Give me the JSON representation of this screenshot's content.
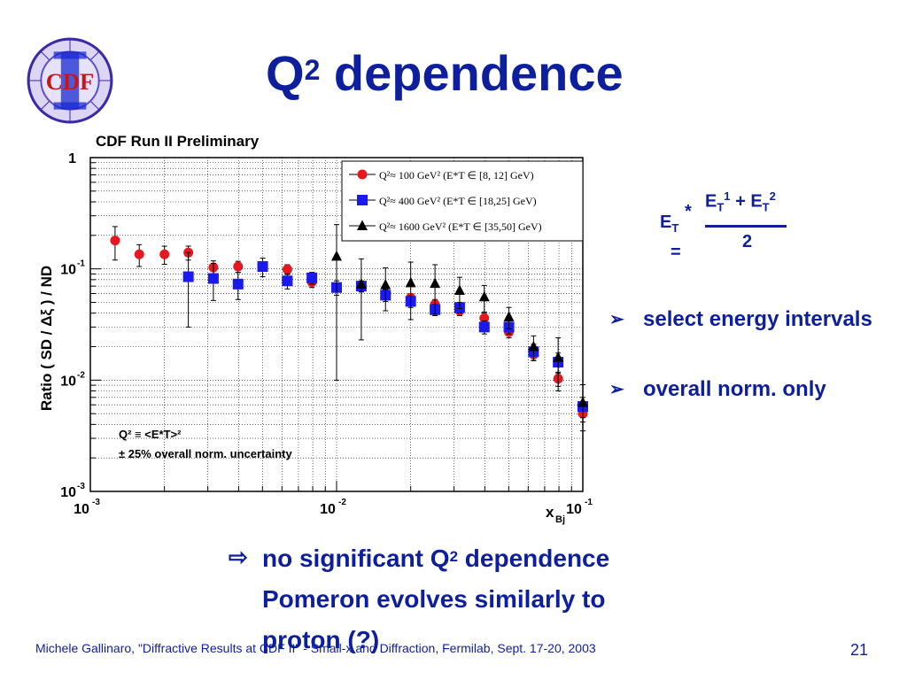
{
  "slide": {
    "title_base": "Q",
    "title_sup": "2",
    "title_rest": " dependence",
    "logo_text": "CDF",
    "formula": {
      "lhs": "E",
      "lhs_sub": "T",
      "star": "*",
      "eq": "=",
      "num_a": "E",
      "num_a_sub": "T",
      "num_a_sup": "1",
      "plus": " + ",
      "num_b": "E",
      "num_b_sub": "T",
      "num_b_sup": "2",
      "den": "2"
    },
    "bullets": [
      "select energy intervals",
      "overall norm. only"
    ],
    "bullet_arrow": "➢",
    "conclusion_arrow": "⇨",
    "conclusion": {
      "line1_a": "no significant Q",
      "line1_sup": "2",
      "line1_b": " dependence",
      "line2": "Pomeron evolves similarly to",
      "line3": "proton (?)"
    },
    "footer": "Michele Gallinaro, \"Diffractive Results at CDF II\" - Small-x and Diffraction, Fermilab, Sept. 17-20, 2003",
    "page_number": "21"
  },
  "colors": {
    "title_blue": "#0d1f9c",
    "series_red": "#e8161e",
    "series_blue": "#1a1aef",
    "series_black": "#000000"
  },
  "chart_data": {
    "type": "scatter",
    "title": "CDF Run II Preliminary",
    "ylabel": "Ratio ( SD / Δξ ) / ND",
    "xlabel_main": "x",
    "xlabel_sub": "Bj",
    "x_scale": "log",
    "y_scale": "log",
    "xlim": [
      0.001,
      0.1
    ],
    "ylim": [
      0.001,
      1
    ],
    "grid": true,
    "legend_placement": "top-right",
    "x_ticks": [
      {
        "value": 0.001,
        "base": "10",
        "exp": "-3"
      },
      {
        "value": 0.01,
        "base": "10",
        "exp": "-2"
      },
      {
        "value": 0.1,
        "base": "10",
        "exp": "-1"
      }
    ],
    "y_ticks": [
      {
        "value": 1,
        "label": "1",
        "exp": ""
      },
      {
        "value": 0.1,
        "label": "10",
        "exp": "-1"
      },
      {
        "value": 0.01,
        "label": "10",
        "exp": "-2"
      },
      {
        "value": 0.001,
        "label": "10",
        "exp": "-3"
      }
    ],
    "annotation_q2": "Q² ≡ <E*T>²",
    "annotation_norm": "± 25% overall norm. uncertainty",
    "series": [
      {
        "name": "Q²≈ 100 GeV² (E*T ∈ [8, 12] GeV)",
        "marker": "circle",
        "color": "#e8161e",
        "points": [
          {
            "x": 0.00126,
            "y": 0.18,
            "err": 0.06
          },
          {
            "x": 0.00158,
            "y": 0.135,
            "err": 0.03
          },
          {
            "x": 0.002,
            "y": 0.135,
            "err": 0.025
          },
          {
            "x": 0.0025,
            "y": 0.14,
            "err": 0.02
          },
          {
            "x": 0.00316,
            "y": 0.103,
            "err": 0.015
          },
          {
            "x": 0.00398,
            "y": 0.105,
            "err": 0.012
          },
          {
            "x": 0.00631,
            "y": 0.099,
            "err": 0.01
          },
          {
            "x": 0.00794,
            "y": 0.076,
            "err": 0.008
          },
          {
            "x": 0.0126,
            "y": 0.07,
            "err": 0.007
          },
          {
            "x": 0.0158,
            "y": 0.06,
            "err": 0.006
          },
          {
            "x": 0.02,
            "y": 0.055,
            "err": 0.005
          },
          {
            "x": 0.0251,
            "y": 0.048,
            "err": 0.005
          },
          {
            "x": 0.0316,
            "y": 0.042,
            "err": 0.004
          },
          {
            "x": 0.0398,
            "y": 0.036,
            "err": 0.004
          },
          {
            "x": 0.0501,
            "y": 0.027,
            "err": 0.003
          },
          {
            "x": 0.0631,
            "y": 0.017,
            "err": 0.002
          },
          {
            "x": 0.0794,
            "y": 0.0103,
            "err": 0.0015
          },
          {
            "x": 0.1,
            "y": 0.005,
            "err": 0.0008
          }
        ]
      },
      {
        "name": "Q²≈ 400 GeV² (E*T ∈ [18,25] GeV)",
        "marker": "square",
        "color": "#1a1aef",
        "points": [
          {
            "x": 0.0025,
            "y": 0.085,
            "err": 0.055
          },
          {
            "x": 0.00316,
            "y": 0.082,
            "err": 0.03
          },
          {
            "x": 0.00398,
            "y": 0.073,
            "err": 0.02
          },
          {
            "x": 0.00501,
            "y": 0.105,
            "err": 0.02
          },
          {
            "x": 0.00631,
            "y": 0.078,
            "err": 0.012
          },
          {
            "x": 0.00794,
            "y": 0.083,
            "err": 0.01
          },
          {
            "x": 0.01,
            "y": 0.068,
            "err": 0.01
          },
          {
            "x": 0.0126,
            "y": 0.07,
            "err": 0.008
          },
          {
            "x": 0.0158,
            "y": 0.058,
            "err": 0.007
          },
          {
            "x": 0.02,
            "y": 0.051,
            "err": 0.006
          },
          {
            "x": 0.0251,
            "y": 0.043,
            "err": 0.005
          },
          {
            "x": 0.0316,
            "y": 0.045,
            "err": 0.005
          },
          {
            "x": 0.0398,
            "y": 0.03,
            "err": 0.004
          },
          {
            "x": 0.0501,
            "y": 0.03,
            "err": 0.004
          },
          {
            "x": 0.0631,
            "y": 0.018,
            "err": 0.003
          },
          {
            "x": 0.0794,
            "y": 0.0145,
            "err": 0.003
          },
          {
            "x": 0.1,
            "y": 0.0058,
            "err": 0.0012
          }
        ]
      },
      {
        "name": "Q²≈ 1600 GeV² (E*T ∈ [35,50] GeV)",
        "marker": "triangle",
        "color": "#000000",
        "points": [
          {
            "x": 0.01,
            "y": 0.13,
            "err": 0.12
          },
          {
            "x": 0.0126,
            "y": 0.073,
            "err": 0.05
          },
          {
            "x": 0.0158,
            "y": 0.072,
            "err": 0.03
          },
          {
            "x": 0.02,
            "y": 0.075,
            "err": 0.04
          },
          {
            "x": 0.0251,
            "y": 0.074,
            "err": 0.035
          },
          {
            "x": 0.0316,
            "y": 0.064,
            "err": 0.02
          },
          {
            "x": 0.0398,
            "y": 0.056,
            "err": 0.015
          },
          {
            "x": 0.0501,
            "y": 0.037,
            "err": 0.008
          },
          {
            "x": 0.0631,
            "y": 0.02,
            "err": 0.005
          },
          {
            "x": 0.0794,
            "y": 0.016,
            "err": 0.008
          },
          {
            "x": 0.1,
            "y": 0.0063,
            "err": 0.0028
          }
        ]
      }
    ]
  }
}
